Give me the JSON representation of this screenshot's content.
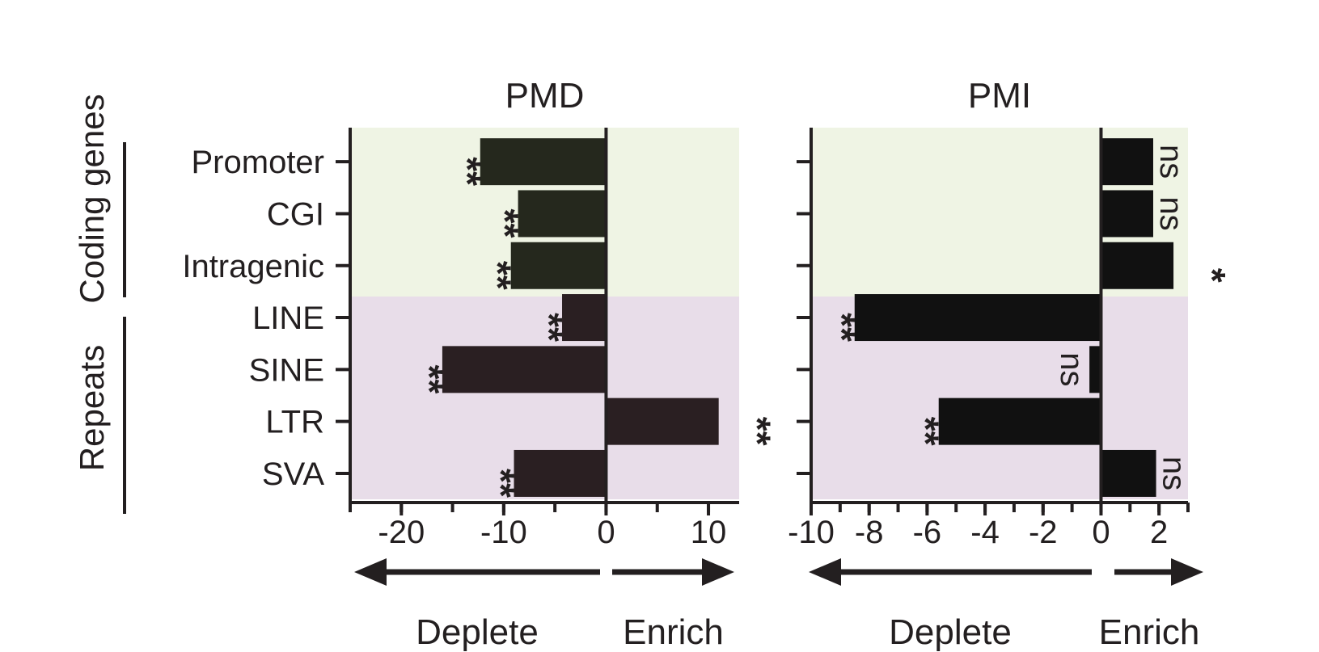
{
  "figure": {
    "group_labels": [
      "Coding genes",
      "Repeats"
    ],
    "direction_labels": {
      "deplete": "Deplete",
      "enrich": "Enrich"
    },
    "colors": {
      "coding_background": "#eff4e4",
      "repeat_background": "#e8dde9",
      "coding_bar": "#25281d",
      "repeat_bar": "#2a1f22",
      "pmi_bar": "#111111",
      "ink": "#231f20"
    }
  },
  "chart_data": [
    {
      "type": "bar",
      "orientation": "horizontal",
      "title": "PMD",
      "categories": [
        "Promoter",
        "CGI",
        "Intragenic",
        "LINE",
        "SINE",
        "LTR",
        "SVA"
      ],
      "groups": [
        "Coding genes",
        "Coding genes",
        "Coding genes",
        "Repeats",
        "Repeats",
        "Repeats",
        "Repeats"
      ],
      "values": [
        -12.3,
        -8.6,
        -9.3,
        -4.3,
        -16,
        11,
        -9
      ],
      "significance": [
        "**",
        "**",
        "**",
        "**",
        "**",
        "**",
        "**"
      ],
      "xlim": [
        -25,
        13
      ],
      "ticks": [
        -20,
        -10,
        0,
        10
      ],
      "tick_labels": [
        "-20",
        "-10",
        "0",
        "10"
      ],
      "minor_ticks": [
        -25,
        -20,
        -15,
        -10,
        -5,
        0,
        5,
        10
      ],
      "xlabel": "",
      "ylabel": ""
    },
    {
      "type": "bar",
      "orientation": "horizontal",
      "title": "PMI",
      "categories": [
        "Promoter",
        "CGI",
        "Intragenic",
        "LINE",
        "SINE",
        "LTR",
        "SVA"
      ],
      "groups": [
        "Coding genes",
        "Coding genes",
        "Coding genes",
        "Repeats",
        "Repeats",
        "Repeats",
        "Repeats"
      ],
      "values": [
        1.8,
        1.8,
        2.5,
        -8.5,
        -0.4,
        -5.6,
        1.9
      ],
      "significance": [
        "ns",
        "ns",
        "*",
        "**",
        "ns",
        "**",
        "ns"
      ],
      "xlim": [
        -10,
        3
      ],
      "ticks": [
        -10,
        -8,
        -6,
        -4,
        -2,
        0,
        2
      ],
      "tick_labels": [
        "-10",
        "-8",
        "-6",
        "-4",
        "-2",
        "0",
        "2"
      ],
      "minor_ticks": [
        -10,
        -9,
        -8,
        -7,
        -6,
        -5,
        -4,
        -3,
        -2,
        -1,
        0,
        1,
        2,
        3
      ],
      "xlabel": "",
      "ylabel": ""
    }
  ]
}
